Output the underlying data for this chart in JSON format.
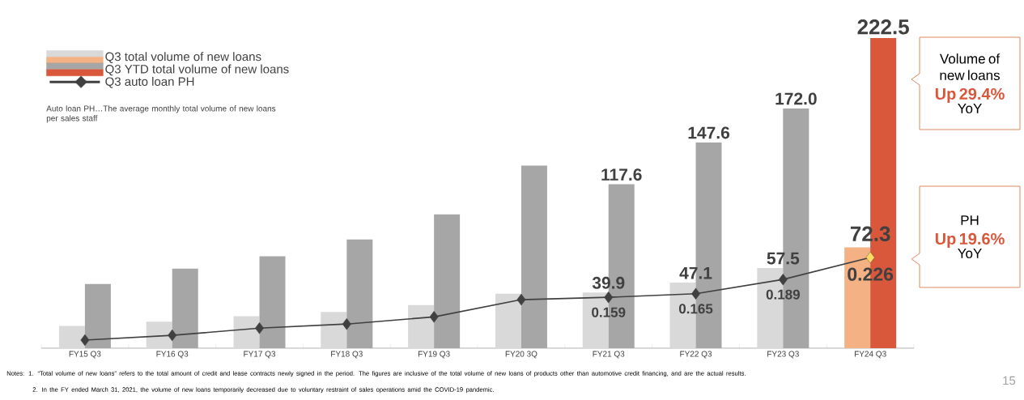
{
  "chart_data": {
    "type": "bar",
    "categories": [
      "FY15 Q3",
      "FY16 Q3",
      "FY17 Q3",
      "FY18 Q3",
      "FY19 Q3",
      "FY20 3Q",
      "FY21 Q3",
      "FY22 Q3",
      "FY23 Q3",
      "FY24 Q3"
    ],
    "series": [
      {
        "name": "Q3 total volume of new loans",
        "color": "#d9d9d9",
        "colors": [
          "#d9d9d9",
          "#d9d9d9",
          "#d9d9d9",
          "#d9d9d9",
          "#d9d9d9",
          "#d9d9d9",
          "#d9d9d9",
          "#d9d9d9",
          "#d9d9d9",
          "#f4b183"
        ],
        "values": [
          16,
          19,
          23,
          26,
          31,
          39,
          39.9,
          47.1,
          57.5,
          72.3
        ],
        "value_labels": [
          null,
          null,
          null,
          null,
          null,
          null,
          "39.9",
          "47.1",
          "57.5",
          "72.3"
        ]
      },
      {
        "name": "Q3 YTD total volume of new loans",
        "color": "#a6a6a6",
        "colors": [
          "#a6a6a6",
          "#a6a6a6",
          "#a6a6a6",
          "#a6a6a6",
          "#a6a6a6",
          "#a6a6a6",
          "#a6a6a6",
          "#a6a6a6",
          "#a6a6a6",
          "#d9573a"
        ],
        "values": [
          46,
          57,
          66,
          78,
          96,
          131,
          117.6,
          147.6,
          172,
          222.5
        ],
        "value_labels": [
          null,
          null,
          null,
          null,
          null,
          null,
          "117.6",
          "147.6",
          "172.0",
          "222.5"
        ]
      },
      {
        "name": "Q3 auto loan PH",
        "type": "line",
        "axis": "y2",
        "color": "#404040",
        "marker": "diamond",
        "colors": [
          "#404040",
          "#404040",
          "#404040",
          "#404040",
          "#404040",
          "#404040",
          "#404040",
          "#404040",
          "#404040",
          "#ffd966"
        ],
        "values": [
          0.087,
          0.095,
          0.107,
          0.114,
          0.126,
          0.155,
          0.159,
          0.165,
          0.189,
          0.226
        ],
        "value_labels": [
          null,
          null,
          null,
          null,
          null,
          null,
          "0.159",
          "0.165",
          "0.189",
          "0.226"
        ]
      }
    ],
    "ylim": [
      0,
      222.5
    ],
    "tick_labels": "x",
    "legend": "top left",
    "annotations": [
      "Auto loan PH…The average monthly total volume of new loans per sales staff",
      "Volume of new loans",
      "Up 29.4%",
      "YoY",
      "PH",
      "Up 19.6%",
      "YoY",
      "Notes: 1. “Total volume of new loans” refers to the total amount of credit and lease contracts newly signed in the period. The figures are inclusive of the total volume of new loans of products other than automotive credit financing, and are the actual results.",
      "2. In the FY ended March 31, 2021, the volume of new loans temporarily decreased due to voluntary restraint of sales operations amid the COVID-19 pandemic.",
      "15"
    ]
  }
}
